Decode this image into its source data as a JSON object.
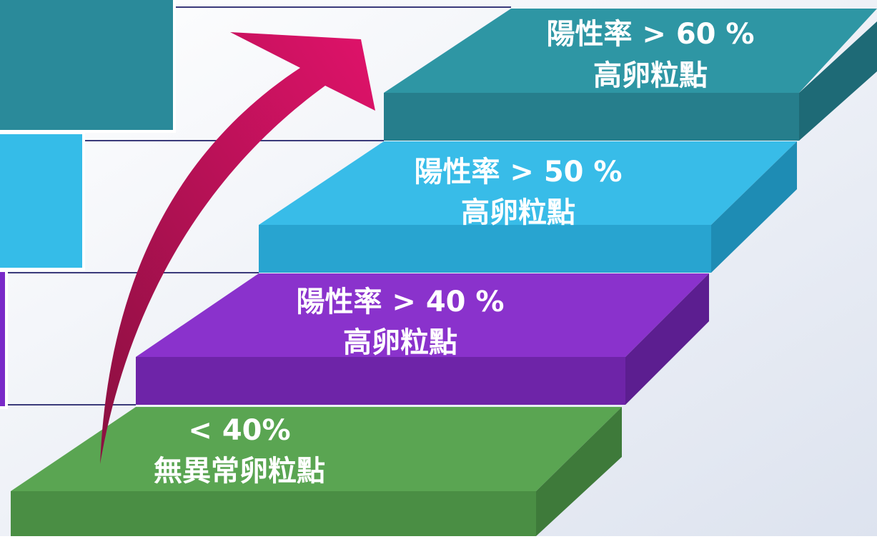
{
  "steps": [
    {
      "line1": "< 40%",
      "line2": "無異常卵粒點"
    },
    {
      "line1": "陽性率 > 40 %",
      "line2": "高卵粒點"
    },
    {
      "line1": "陽性率 > 50 %",
      "line2": "高卵粒點"
    },
    {
      "line1": "陽性率 > 60 %",
      "line2": "高卵粒點"
    }
  ]
}
